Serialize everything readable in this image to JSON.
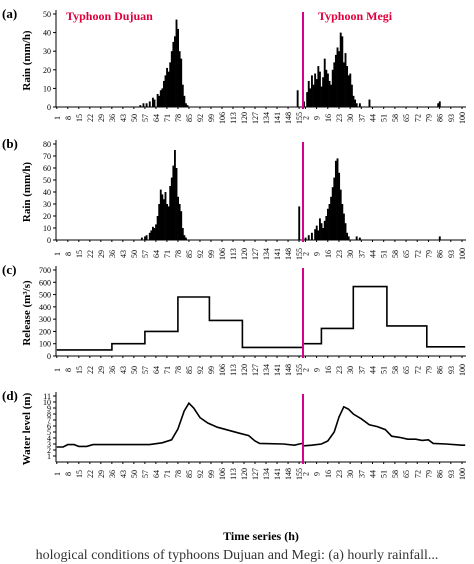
{
  "figure": {
    "typhoon_left": "Typhoon Dujuan",
    "typhoon_right": "Typhoon Megi",
    "xlabel": "Time series (h)",
    "separator_color": "#d9008c",
    "caption_fragment": "hological conditions of typhoons Dujuan and Megi: (a) hourly rainfall..."
  },
  "chart_data": [
    {
      "id": "a",
      "type": "bar",
      "panel_label": "(a)",
      "ylabel": "Rain (mm/h)",
      "ylim": [
        0,
        50
      ],
      "yticks": [
        0,
        10,
        20,
        30,
        40,
        50
      ],
      "xticks_left": [
        "1",
        "8",
        "15",
        "22",
        "29",
        "36",
        "43",
        "50",
        "57",
        "64",
        "71",
        "78",
        "85",
        "92",
        "99",
        "106",
        "113",
        "120",
        "127",
        "134",
        "141",
        "148",
        "155"
      ],
      "xticks_right": [
        "2",
        "9",
        "16",
        "23",
        "30",
        "37",
        "44",
        "51",
        "58",
        "65",
        "72",
        "79",
        "86",
        "93",
        "100"
      ],
      "dujuan": [
        [
          54,
          1
        ],
        [
          56,
          2
        ],
        [
          58,
          2
        ],
        [
          60,
          3
        ],
        [
          62,
          5
        ],
        [
          63,
          4
        ],
        [
          65,
          7
        ],
        [
          66,
          6
        ],
        [
          67,
          9
        ],
        [
          68,
          10
        ],
        [
          69,
          14
        ],
        [
          70,
          17
        ],
        [
          71,
          21
        ],
        [
          72,
          19
        ],
        [
          73,
          24
        ],
        [
          74,
          30
        ],
        [
          75,
          35
        ],
        [
          76,
          38
        ],
        [
          77,
          47
        ],
        [
          78,
          42
        ],
        [
          79,
          30
        ],
        [
          80,
          26
        ],
        [
          81,
          12
        ],
        [
          82,
          6
        ],
        [
          83,
          2
        ],
        [
          84,
          1
        ],
        [
          154,
          9
        ]
      ],
      "megi": [
        [
          1,
          3
        ],
        [
          3,
          8
        ],
        [
          4,
          14
        ],
        [
          5,
          10
        ],
        [
          6,
          17
        ],
        [
          7,
          12
        ],
        [
          8,
          18
        ],
        [
          9,
          15
        ],
        [
          10,
          22
        ],
        [
          11,
          19
        ],
        [
          12,
          11
        ],
        [
          13,
          16
        ],
        [
          14,
          26
        ],
        [
          15,
          20
        ],
        [
          16,
          18
        ],
        [
          17,
          14
        ],
        [
          18,
          12
        ],
        [
          19,
          20
        ],
        [
          20,
          24
        ],
        [
          21,
          28
        ],
        [
          22,
          32
        ],
        [
          23,
          30
        ],
        [
          24,
          40
        ],
        [
          25,
          38
        ],
        [
          26,
          24
        ],
        [
          27,
          29
        ],
        [
          28,
          22
        ],
        [
          29,
          17
        ],
        [
          30,
          18
        ],
        [
          31,
          12
        ],
        [
          32,
          6
        ],
        [
          33,
          4
        ],
        [
          34,
          2
        ],
        [
          36,
          2
        ],
        [
          42,
          4
        ],
        [
          85,
          2
        ],
        [
          86,
          3
        ]
      ]
    },
    {
      "id": "b",
      "type": "bar",
      "panel_label": "(b)",
      "ylabel": "Rain (mm/h)",
      "ylim": [
        0,
        80
      ],
      "yticks": [
        0,
        10,
        20,
        30,
        40,
        50,
        60,
        70,
        80
      ],
      "xticks_left": [
        "1",
        "8",
        "15",
        "22",
        "29",
        "36",
        "43",
        "50",
        "57",
        "64",
        "71",
        "78",
        "85",
        "92",
        "99",
        "106",
        "113",
        "120",
        "127",
        "134",
        "141",
        "148",
        "155"
      ],
      "xticks_right": [
        "2",
        "9",
        "16",
        "23",
        "30",
        "37",
        "44",
        "51",
        "58",
        "65",
        "72",
        "79",
        "86",
        "93",
        "100"
      ],
      "dujuan": [
        [
          55,
          2
        ],
        [
          57,
          3
        ],
        [
          58,
          4
        ],
        [
          60,
          6
        ],
        [
          61,
          8
        ],
        [
          62,
          11
        ],
        [
          63,
          10
        ],
        [
          64,
          13
        ],
        [
          65,
          20
        ],
        [
          66,
          30
        ],
        [
          67,
          42
        ],
        [
          68,
          38
        ],
        [
          69,
          34
        ],
        [
          70,
          40
        ],
        [
          71,
          30
        ],
        [
          72,
          28
        ],
        [
          73,
          45
        ],
        [
          74,
          52
        ],
        [
          75,
          62
        ],
        [
          76,
          75
        ],
        [
          77,
          60
        ],
        [
          78,
          36
        ],
        [
          79,
          30
        ],
        [
          80,
          24
        ],
        [
          81,
          10
        ],
        [
          82,
          4
        ],
        [
          83,
          2
        ],
        [
          155,
          28
        ]
      ],
      "megi": [
        [
          2,
          2
        ],
        [
          4,
          4
        ],
        [
          6,
          6
        ],
        [
          8,
          9
        ],
        [
          9,
          12
        ],
        [
          10,
          8
        ],
        [
          11,
          18
        ],
        [
          12,
          14
        ],
        [
          13,
          10
        ],
        [
          14,
          16
        ],
        [
          15,
          20
        ],
        [
          16,
          26
        ],
        [
          17,
          30
        ],
        [
          18,
          36
        ],
        [
          19,
          44
        ],
        [
          20,
          52
        ],
        [
          21,
          66
        ],
        [
          22,
          68
        ],
        [
          23,
          56
        ],
        [
          24,
          42
        ],
        [
          25,
          30
        ],
        [
          26,
          22
        ],
        [
          27,
          14
        ],
        [
          28,
          6
        ],
        [
          29,
          3
        ],
        [
          34,
          3
        ],
        [
          36,
          2
        ],
        [
          86,
          3
        ]
      ]
    },
    {
      "id": "c",
      "type": "line",
      "panel_label": "(c)",
      "ylabel": "Release (m³/s)",
      "ylim": [
        0,
        700
      ],
      "yticks": [
        0,
        100,
        200,
        300,
        400,
        500,
        600,
        700
      ],
      "xticks_left": [
        "1",
        "8",
        "15",
        "22",
        "29",
        "36",
        "43",
        "50",
        "57",
        "64",
        "71",
        "78",
        "85",
        "92",
        "99",
        "106",
        "113",
        "120",
        "127",
        "134",
        "141",
        "148",
        "155"
      ],
      "xticks_right": [
        "2",
        "9",
        "16",
        "23",
        "30",
        "37",
        "44",
        "51",
        "58",
        "65",
        "72",
        "79",
        "86",
        "93",
        "100"
      ],
      "dujuan": [
        [
          1,
          50
        ],
        [
          36,
          50
        ],
        [
          36,
          100
        ],
        [
          57,
          100
        ],
        [
          57,
          200
        ],
        [
          78,
          200
        ],
        [
          78,
          480
        ],
        [
          98,
          480
        ],
        [
          98,
          290
        ],
        [
          119,
          290
        ],
        [
          119,
          70
        ],
        [
          157,
          70
        ]
      ],
      "megi": [
        [
          1,
          100
        ],
        [
          12,
          100
        ],
        [
          12,
          225
        ],
        [
          32,
          225
        ],
        [
          32,
          565
        ],
        [
          53,
          565
        ],
        [
          53,
          245
        ],
        [
          78,
          245
        ],
        [
          78,
          75
        ],
        [
          102,
          75
        ]
      ]
    },
    {
      "id": "d",
      "type": "line",
      "panel_label": "(d)",
      "ylabel": "Water level (m)",
      "ylim": [
        0,
        11
      ],
      "yticks": [
        1,
        2,
        3,
        4,
        5,
        6,
        7,
        8,
        9,
        10,
        11
      ],
      "xticks_left": [
        "1",
        "8",
        "15",
        "22",
        "29",
        "36",
        "43",
        "50",
        "57",
        "64",
        "71",
        "78",
        "85",
        "92",
        "99",
        "106",
        "113",
        "120",
        "127",
        "134",
        "141",
        "148",
        "155"
      ],
      "xticks_right": [
        "2",
        "9",
        "16",
        "23",
        "30",
        "37",
        "44",
        "51",
        "58",
        "65",
        "72",
        "79",
        "86",
        "93",
        "100"
      ],
      "dujuan": [
        [
          1,
          2.5
        ],
        [
          5,
          2.5
        ],
        [
          8,
          2.9
        ],
        [
          12,
          2.9
        ],
        [
          15,
          2.6
        ],
        [
          20,
          2.6
        ],
        [
          24,
          2.9
        ],
        [
          60,
          2.9
        ],
        [
          68,
          3.2
        ],
        [
          74,
          3.7
        ],
        [
          78,
          5.5
        ],
        [
          82,
          8.5
        ],
        [
          85,
          9.8
        ],
        [
          88,
          9.0
        ],
        [
          92,
          7.4
        ],
        [
          97,
          6.5
        ],
        [
          103,
          5.8
        ],
        [
          110,
          5.3
        ],
        [
          117,
          4.8
        ],
        [
          123,
          4.4
        ],
        [
          127,
          3.5
        ],
        [
          130,
          3.1
        ],
        [
          145,
          3.0
        ],
        [
          152,
          2.8
        ],
        [
          157,
          3.1
        ]
      ],
      "megi": [
        [
          1,
          2.7
        ],
        [
          6,
          2.8
        ],
        [
          12,
          3.0
        ],
        [
          16,
          3.5
        ],
        [
          20,
          5.0
        ],
        [
          23,
          7.5
        ],
        [
          26,
          9.2
        ],
        [
          29,
          8.8
        ],
        [
          32,
          8.0
        ],
        [
          37,
          7.2
        ],
        [
          42,
          6.2
        ],
        [
          47,
          5.9
        ],
        [
          52,
          5.4
        ],
        [
          56,
          4.3
        ],
        [
          61,
          4.1
        ],
        [
          66,
          3.8
        ],
        [
          71,
          3.8
        ],
        [
          75,
          3.6
        ],
        [
          79,
          3.7
        ],
        [
          82,
          3.1
        ],
        [
          90,
          3.0
        ],
        [
          100,
          2.8
        ],
        [
          102,
          2.8
        ]
      ]
    }
  ]
}
